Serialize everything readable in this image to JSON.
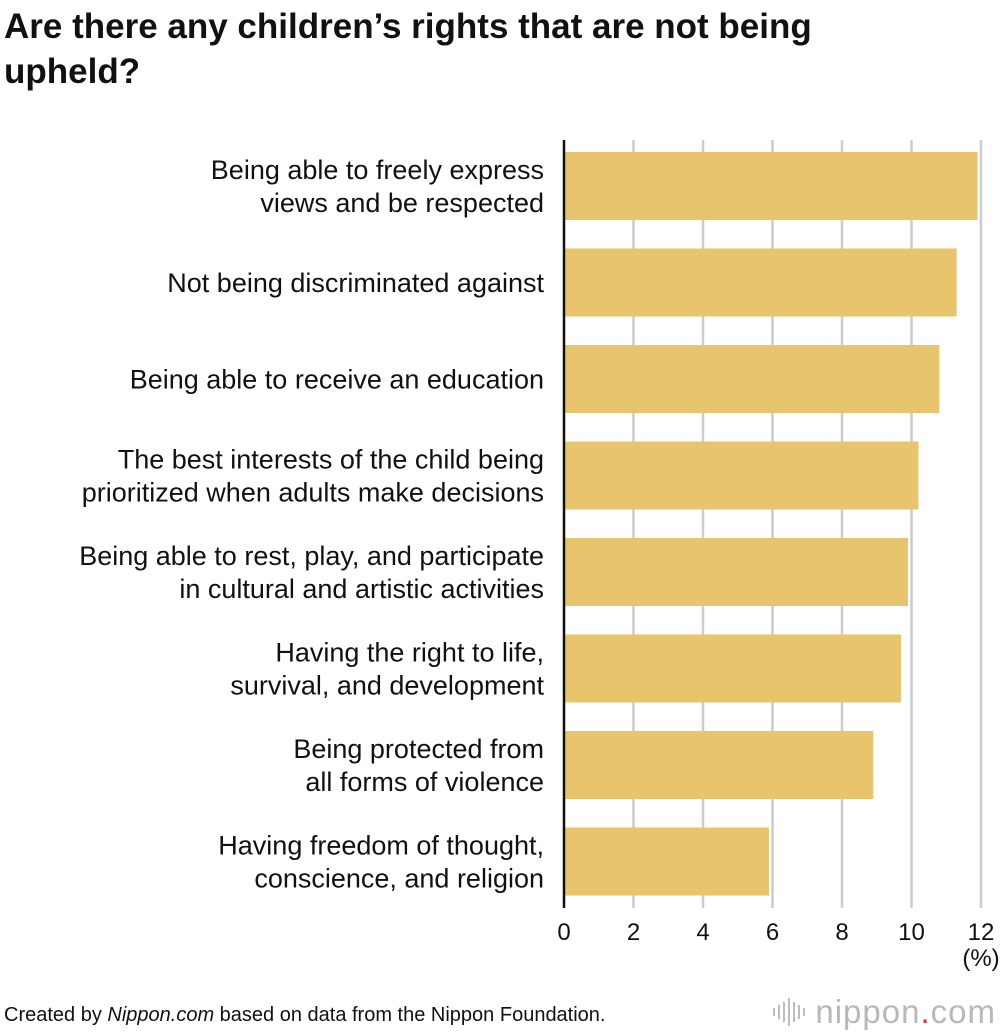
{
  "title": "Are there any children’s rights that are not being upheld?",
  "footer": {
    "prefix": "Created by ",
    "source_name": "Nippon.com",
    "suffix": " based on data from the Nippon Foundation."
  },
  "logo": {
    "name": "nippon",
    "dot": ".",
    "tld": "com"
  },
  "colors": {
    "bar": "#E8C46C",
    "grid": "#cccccc",
    "axis": "#111111",
    "text": "#111111",
    "logo_gray": "#b8b8b8",
    "logo_dot": "#d83a34"
  },
  "chart_data": {
    "type": "bar",
    "orientation": "horizontal",
    "categories": [
      [
        "Being able to freely express",
        "views and be respected"
      ],
      [
        "Not being discriminated against"
      ],
      [
        "Being able to receive an education"
      ],
      [
        "The best interests of the child being",
        "prioritized when adults make decisions"
      ],
      [
        "Being able to rest, play, and participate",
        "in cultural and artistic activities"
      ],
      [
        "Having the right to life,",
        "survival, and development"
      ],
      [
        "Being protected from",
        "all forms of violence"
      ],
      [
        "Having freedom of thought,",
        "conscience, and religion"
      ]
    ],
    "values": [
      11.9,
      11.3,
      10.8,
      10.2,
      9.9,
      9.7,
      8.9,
      5.9
    ],
    "xlim": [
      0,
      12
    ],
    "xticks": [
      0,
      2,
      4,
      6,
      8,
      10,
      12
    ],
    "tick_labels": [
      "0",
      "2",
      "4",
      "6",
      "8",
      "10",
      "12"
    ],
    "unit_label": "(%)",
    "grid": true,
    "legend": "none"
  }
}
